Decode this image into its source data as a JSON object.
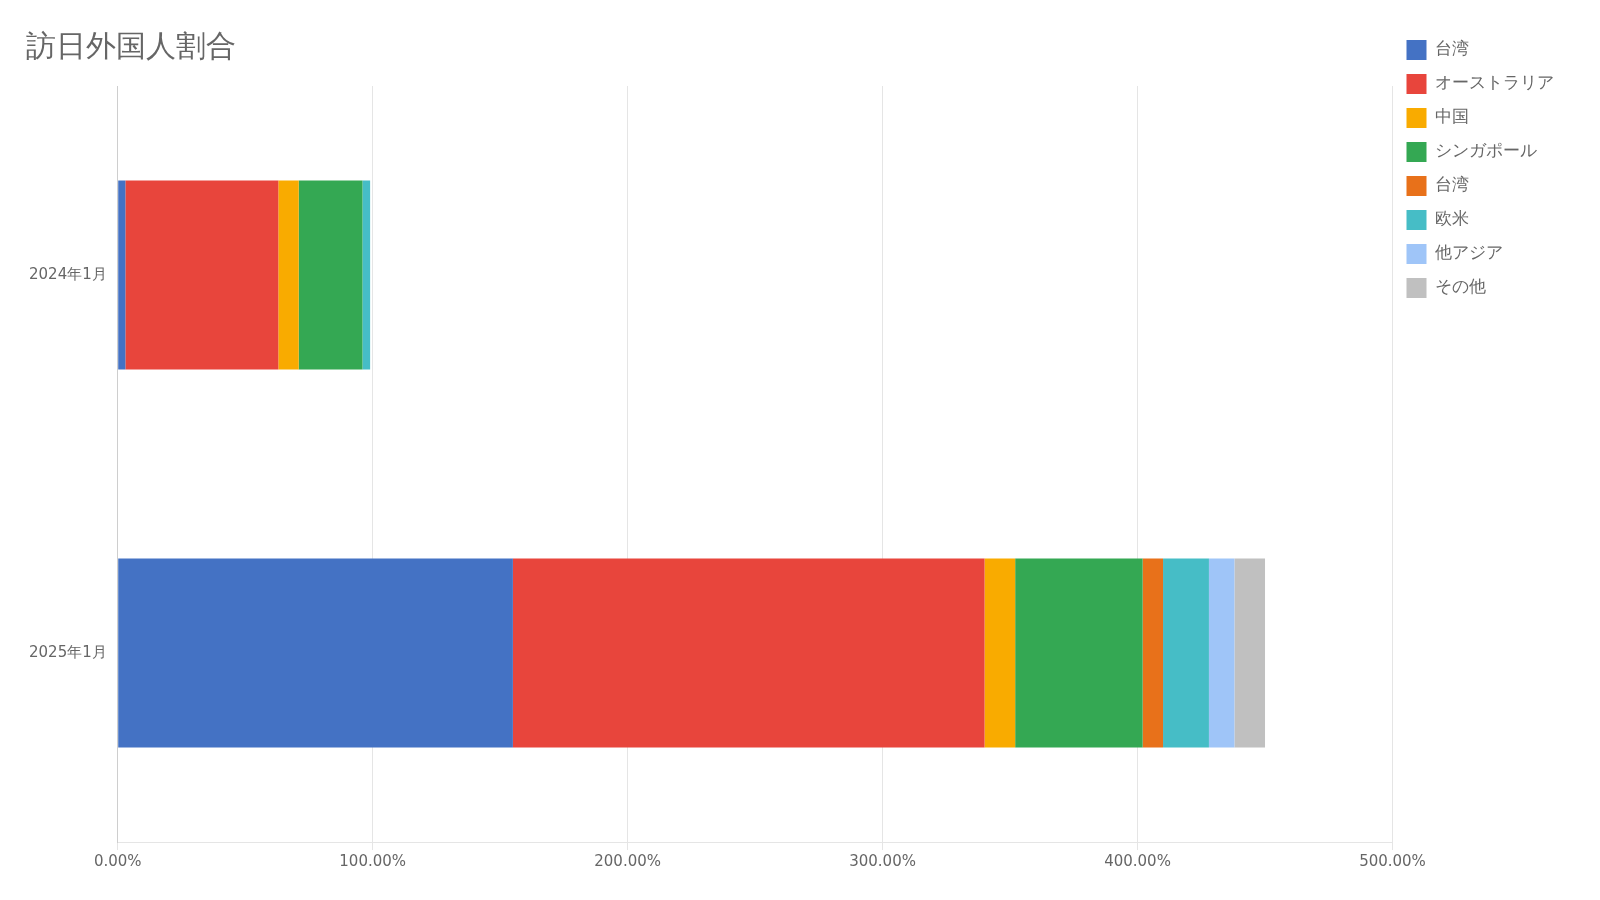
{
  "chart_data": {
    "type": "bar",
    "orientation": "horizontal",
    "stacked": true,
    "title": "訪日外国人割合",
    "categories": [
      "2025年1月",
      "2024年1月"
    ],
    "series": [
      {
        "name": "台湾",
        "color": "#4472C4",
        "values": [
          155.0,
          3.0
        ]
      },
      {
        "name": "オーストラリア",
        "color": "#E8453C",
        "values": [
          185.0,
          60.0
        ]
      },
      {
        "name": "中国",
        "color": "#F9AB00",
        "values": [
          12.0,
          8.0
        ]
      },
      {
        "name": "シンガポール",
        "color": "#34A853",
        "values": [
          50.0,
          25.0
        ]
      },
      {
        "name": "台湾",
        "color": "#E8711A",
        "values": [
          8.0,
          0.0
        ]
      },
      {
        "name": "欧米",
        "color": "#46BDC6",
        "values": [
          18.0,
          3.0
        ]
      },
      {
        "name": "他アジア",
        "color": "#9FC5F8",
        "values": [
          10.0,
          0.0
        ]
      },
      {
        "name": "その他",
        "color": "#C0C0C0",
        "values": [
          12.0,
          0.0
        ]
      }
    ],
    "xlim": [
      0,
      500
    ],
    "xticks": [
      {
        "value": 0,
        "label": "0.00%"
      },
      {
        "value": 100,
        "label": "100.00%"
      },
      {
        "value": 200,
        "label": "200.00%"
      },
      {
        "value": 300,
        "label": "300.00%"
      },
      {
        "value": 400,
        "label": "400.00%"
      },
      {
        "value": 500,
        "label": "500.00%"
      }
    ],
    "grid": true,
    "legend": "upper right"
  }
}
